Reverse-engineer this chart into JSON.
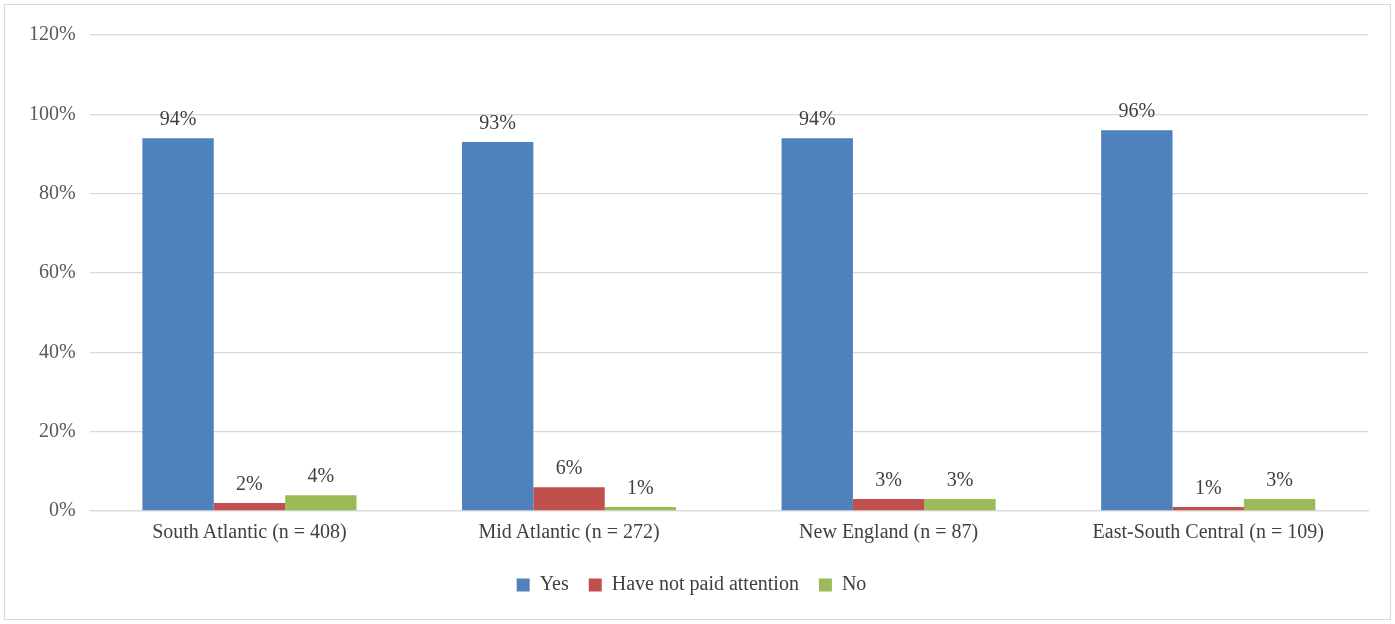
{
  "chart_data": {
    "type": "bar",
    "categories": [
      "South Atlantic (n = 408)",
      "Mid Atlantic (n = 272)",
      "New England (n = 87)",
      "East-South Central (n = 109)"
    ],
    "series": [
      {
        "name": "Yes",
        "color": "#4f81bd",
        "values": [
          94,
          93,
          94,
          96
        ],
        "value_labels": [
          "94%",
          "93%",
          "94%",
          "96%"
        ]
      },
      {
        "name": "Have not paid attention",
        "color": "#c0504d",
        "values": [
          2,
          6,
          3,
          1
        ],
        "value_labels": [
          "2%",
          "6%",
          "3%",
          "1%"
        ]
      },
      {
        "name": "No",
        "color": "#9bbb59",
        "values": [
          4,
          1,
          3,
          3
        ],
        "value_labels": [
          "4%",
          "1%",
          "3%",
          "3%"
        ]
      }
    ],
    "ylim": [
      0,
      120
    ],
    "yticks": [
      {
        "value": 0,
        "label": "0%"
      },
      {
        "value": 20,
        "label": "20%"
      },
      {
        "value": 40,
        "label": "40%"
      },
      {
        "value": 60,
        "label": "60%"
      },
      {
        "value": 80,
        "label": "80%"
      },
      {
        "value": 100,
        "label": "100%"
      },
      {
        "value": 120,
        "label": "120%"
      }
    ],
    "grid": "y",
    "legend": "bottom"
  }
}
